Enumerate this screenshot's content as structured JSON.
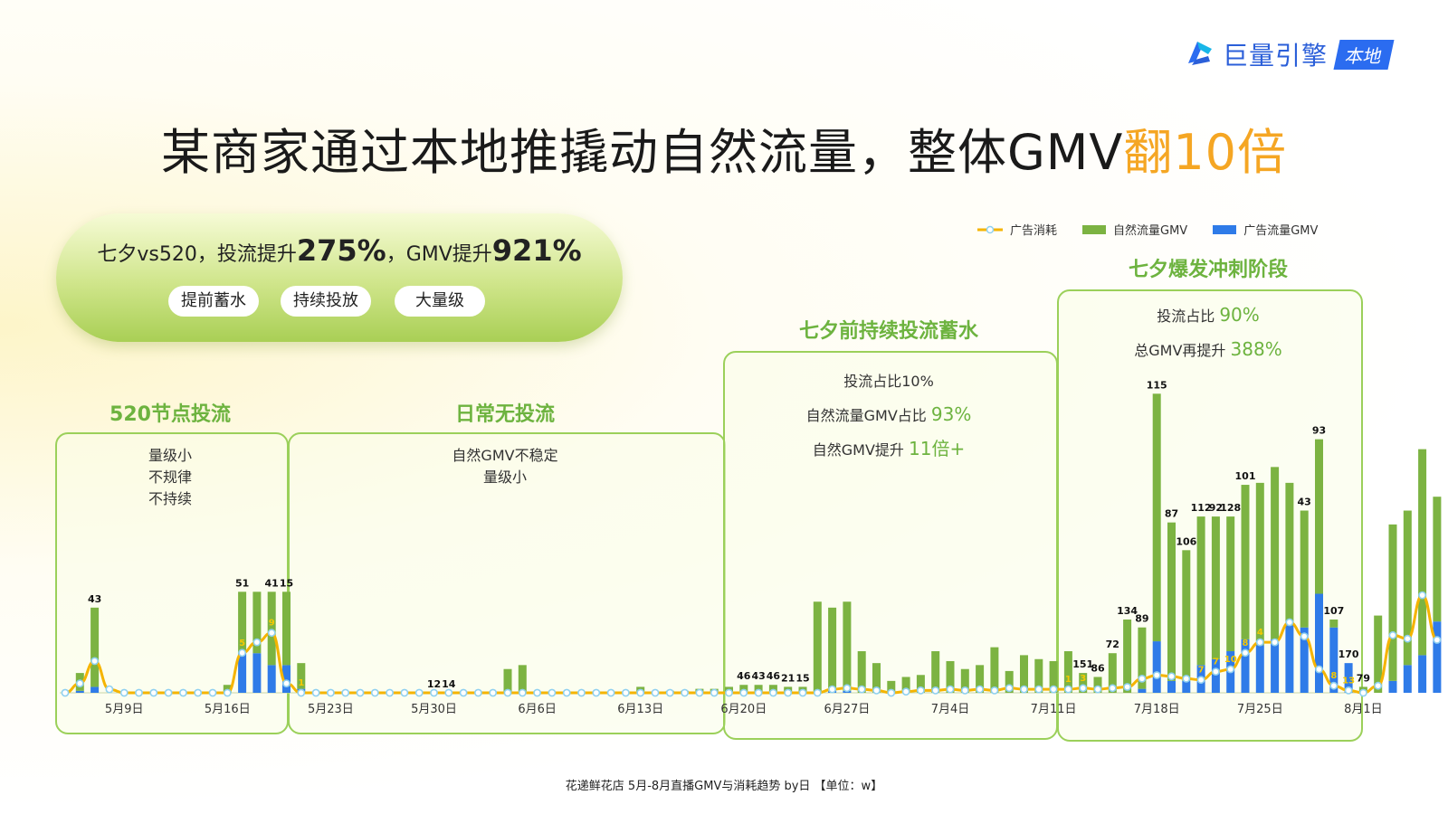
{
  "brand": {
    "name": "巨量引擎",
    "badge": "本地"
  },
  "title": {
    "main": "某商家通过本地推撬动自然流量，整体GMV",
    "highlight": "翻10倍"
  },
  "summary": {
    "prefix": "七夕vs520，投流提升",
    "ad_increase": "275%",
    "middle": "，GMV提升",
    "gmv_increase": "921%",
    "tags": [
      "提前蓄水",
      "持续投放",
      "大量级"
    ]
  },
  "legend": [
    "广告消耗",
    "自然流量GMV",
    "广告流量GMV"
  ],
  "phases": [
    {
      "title": "520节点投流",
      "desc": [
        "量级小",
        "不规律",
        "不持续"
      ]
    },
    {
      "title": "日常无投流",
      "desc": [
        "自然GMV不稳定",
        "量级小"
      ]
    },
    {
      "title": "七夕前持续投流蓄水",
      "desc": [
        {
          "text": "投流占比10%",
          "value": ""
        },
        {
          "text": "自然流量GMV占比 ",
          "value": "93%"
        },
        {
          "text": "自然GMV提升 ",
          "value": "11倍+"
        }
      ]
    },
    {
      "title": "七夕爆发冲刺阶段",
      "desc": [
        {
          "text": "投流占比 ",
          "value": "90%"
        },
        {
          "text": "总GMV再提升 ",
          "value": "388%"
        }
      ]
    }
  ],
  "caption": "花递鲜花店 5月-8月直播GMV与消耗趋势 by日 【单位：w】",
  "colors": {
    "natural": "#7cb342",
    "ad_gmv": "#2f7be8",
    "ad_spend": "#f5b400",
    "box": "#9bd05a",
    "accent": "#f5a623",
    "phase_title": "#6db33f"
  },
  "chart_data": {
    "type": "bar",
    "unit": "w",
    "x_start": "5月5日",
    "tick_labels": [
      "5月9日",
      "5月16日",
      "5月23日",
      "5月30日",
      "6月6日",
      "6月13日",
      "6月20日",
      "6月27日",
      "7月4日",
      "7月11日",
      "7月18日",
      "7月25日",
      "8月1日"
    ],
    "tick_index": [
      4,
      11,
      18,
      25,
      32,
      39,
      46,
      53,
      60,
      67,
      74,
      81,
      88
    ],
    "series": [
      {
        "name": "自然流量GMV",
        "values": [
          0,
          9,
          40,
          0,
          0,
          0,
          0,
          0,
          0,
          0,
          0,
          4,
          31,
          31,
          37,
          37,
          13,
          0,
          0,
          0,
          0,
          0,
          0,
          0,
          0,
          0,
          0,
          0,
          0,
          0,
          12,
          14,
          0,
          0,
          0,
          0,
          0,
          0,
          0,
          3,
          0,
          1,
          1,
          2,
          2,
          3,
          4,
          4,
          4,
          3,
          3,
          46,
          42,
          45,
          21,
          15,
          6,
          8,
          9,
          21,
          16,
          12,
          14,
          23,
          11,
          19,
          17,
          16,
          21,
          10,
          8,
          20,
          37,
          31,
          125,
          80,
          66,
          75,
          72,
          68,
          78,
          82,
          87,
          72,
          59,
          78,
          4,
          0,
          3,
          39,
          79,
          78,
          104,
          63
        ]
      },
      {
        "name": "广告流量GMV",
        "values": [
          0,
          1,
          3,
          0,
          0,
          0,
          0,
          0,
          0,
          0,
          0,
          0,
          20,
          20,
          14,
          14,
          2,
          0,
          0,
          0,
          0,
          0,
          0,
          0,
          0,
          0,
          0,
          0,
          0,
          0,
          0,
          0,
          0,
          0,
          0,
          0,
          0,
          0,
          0,
          0,
          0,
          0,
          0,
          0,
          0,
          0,
          0,
          0,
          0,
          0,
          0,
          0,
          1,
          1,
          0,
          0,
          0,
          0,
          0,
          0,
          0,
          0,
          0,
          0,
          0,
          0,
          0,
          0,
          0,
          0,
          0,
          0,
          0,
          2,
          26,
          6,
          6,
          14,
          17,
          21,
          27,
          24,
          27,
          34,
          33,
          50,
          33,
          15,
          0,
          0,
          6,
          14,
          19,
          36,
          16
        ]
      },
      {
        "name": "广告消耗",
        "values": [
          0,
          0.8,
          2.7,
          0.3,
          0,
          0,
          0,
          0,
          0,
          0,
          0,
          0,
          3.4,
          4.3,
          5.1,
          0.8,
          0,
          0,
          0,
          0,
          0,
          0,
          0,
          0,
          0,
          0,
          0,
          0,
          0,
          0,
          0,
          0,
          0,
          0,
          0,
          0,
          0,
          0,
          0,
          0,
          0,
          0,
          0,
          0,
          0,
          0,
          0,
          0,
          0,
          0,
          0,
          0,
          0.3,
          0.4,
          0.3,
          0.2,
          0,
          0.1,
          0.2,
          0.2,
          0.3,
          0.2,
          0.3,
          0.2,
          0.4,
          0.3,
          0.3,
          0.3,
          0.3,
          0.4,
          0.3,
          0.4,
          0.5,
          1.2,
          1.5,
          1.4,
          1.2,
          1.1,
          1.8,
          2.0,
          3.4,
          4.3,
          4.3,
          6.0,
          4.8,
          2.0,
          0.6,
          0.2,
          0.0,
          0.6,
          4.9,
          4.6,
          8.3,
          4.5
        ]
      }
    ],
    "bar_labels": [
      {
        "i": 2,
        "text": "43"
      },
      {
        "i": 12,
        "text": "51"
      },
      {
        "i": 14,
        "text": "41"
      },
      {
        "i": 15,
        "text": "15"
      },
      {
        "i": 25,
        "text": "12"
      },
      {
        "i": 26,
        "text": "14"
      },
      {
        "i": 46,
        "text": "46"
      },
      {
        "i": 47,
        "text": "43"
      },
      {
        "i": 48,
        "text": "46"
      },
      {
        "i": 49,
        "text": "21"
      },
      {
        "i": 50,
        "text": "15"
      },
      {
        "i": 69,
        "text": "151"
      },
      {
        "i": 70,
        "text": "86"
      },
      {
        "i": 71,
        "text": "72"
      },
      {
        "i": 72,
        "text": "134"
      },
      {
        "i": 73,
        "text": "89"
      },
      {
        "i": 74,
        "text": "115"
      },
      {
        "i": 75,
        "text": "87"
      },
      {
        "i": 76,
        "text": "106"
      },
      {
        "i": 77,
        "text": "112"
      },
      {
        "i": 78,
        "text": "92"
      },
      {
        "i": 79,
        "text": "128"
      },
      {
        "i": 80,
        "text": "101"
      },
      {
        "i": 84,
        "text": "43"
      },
      {
        "i": 85,
        "text": "93"
      },
      {
        "i": 86,
        "text": "107"
      },
      {
        "i": 87,
        "text": "170"
      },
      {
        "i": 88,
        "text": "79"
      }
    ],
    "line_labels": [
      {
        "i": 12,
        "text": "5"
      },
      {
        "i": 14,
        "text": "9"
      },
      {
        "i": 16,
        "text": "1"
      },
      {
        "i": 68,
        "text": "1"
      },
      {
        "i": 69,
        "text": "3"
      },
      {
        "i": 77,
        "text": "7"
      },
      {
        "i": 78,
        "text": "7"
      },
      {
        "i": 79,
        "text": "10"
      },
      {
        "i": 80,
        "text": "8"
      },
      {
        "i": 81,
        "text": "4"
      },
      {
        "i": 86,
        "text": "8"
      },
      {
        "i": 87,
        "text": "13"
      }
    ]
  }
}
